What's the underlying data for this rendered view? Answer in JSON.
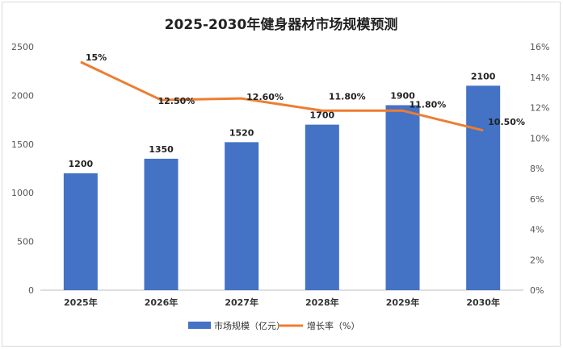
{
  "chart_data": {
    "type": "bar+line",
    "title": "2025-2030年健身器材市场规模预测",
    "categories": [
      "2025年",
      "2026年",
      "2027年",
      "2028年",
      "2029年",
      "2030年"
    ],
    "series": [
      {
        "name": "市场规模（亿元）",
        "type": "bar",
        "axis": "left",
        "color": "#4472c4",
        "values": [
          1200,
          1350,
          1520,
          1700,
          1900,
          2100
        ],
        "labels": [
          "1200",
          "1350",
          "1520",
          "1700",
          "1900",
          "2100"
        ]
      },
      {
        "name": "增长率（%）",
        "type": "line",
        "axis": "right",
        "color": "#ed7d31",
        "values": [
          15,
          12.5,
          12.6,
          11.8,
          11.8,
          10.5
        ],
        "labels": [
          "15%",
          "12.50%",
          "12.60%",
          "11.80%",
          "11.80%",
          "10.50%"
        ]
      }
    ],
    "y_left": {
      "min": 0,
      "max": 2500,
      "step": 500,
      "ticks": [
        "0",
        "500",
        "1000",
        "1500",
        "2000",
        "2500"
      ]
    },
    "y_right": {
      "min": 0,
      "max": 16,
      "step": 2,
      "ticks": [
        "0%",
        "2%",
        "4%",
        "6%",
        "8%",
        "10%",
        "12%",
        "14%",
        "16%"
      ]
    },
    "grid": false,
    "legend_position": "bottom"
  }
}
